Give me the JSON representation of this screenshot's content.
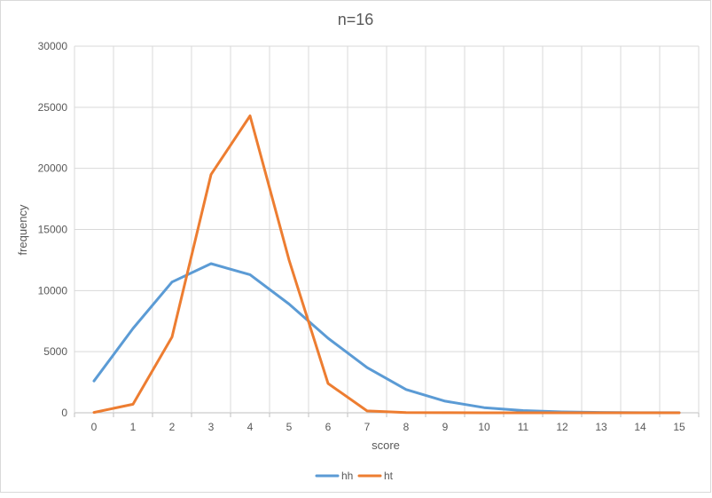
{
  "chart_data": {
    "type": "line",
    "title": "n=16",
    "xlabel": "score",
    "ylabel": "frequency",
    "categories": [
      "0",
      "1",
      "2",
      "3",
      "4",
      "5",
      "6",
      "7",
      "8",
      "9",
      "10",
      "11",
      "12",
      "13",
      "14",
      "15"
    ],
    "ylim": [
      0,
      30000
    ],
    "yticks": [
      0,
      5000,
      10000,
      15000,
      20000,
      25000,
      30000
    ],
    "grid": true,
    "legend": "bottom",
    "series": [
      {
        "name": "hh",
        "color": "#5b9bd5",
        "values": [
          2600,
          6900,
          10700,
          12200,
          11300,
          8900,
          6100,
          3700,
          1900,
          950,
          420,
          180,
          70,
          30,
          10,
          5
        ]
      },
      {
        "name": "ht",
        "color": "#ed7d31",
        "values": [
          30,
          700,
          6200,
          19500,
          24300,
          12500,
          2400,
          150,
          20,
          5,
          2,
          1,
          0,
          0,
          0,
          0
        ]
      }
    ]
  }
}
